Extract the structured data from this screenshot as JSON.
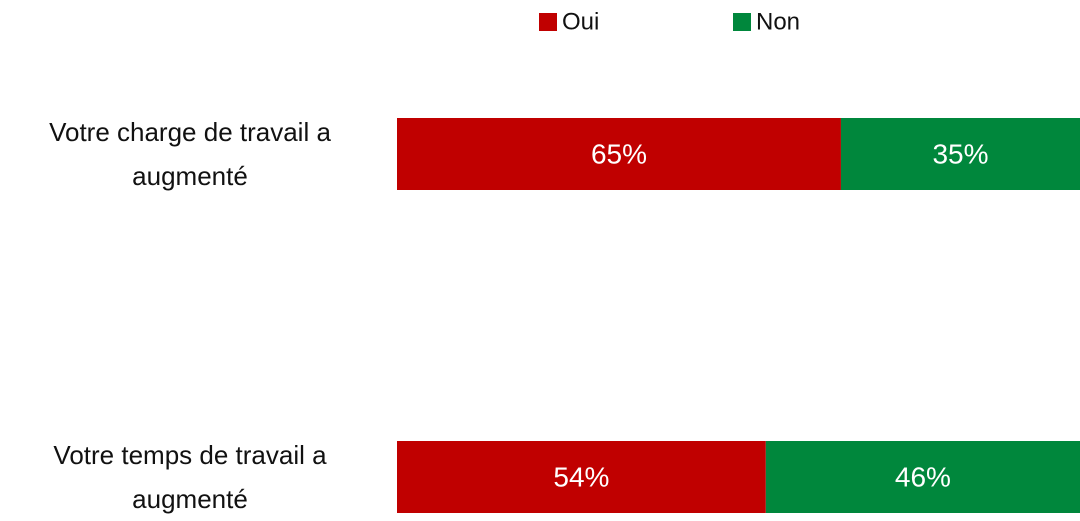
{
  "chart_data": {
    "type": "stacked-bar-horizontal",
    "categories": [
      "Votre charge de travail a augmenté",
      "Votre temps de travail a augmenté"
    ],
    "series": [
      {
        "name": "Oui",
        "color": "#c00000",
        "values": [
          65,
          54
        ],
        "value_labels": [
          "65%",
          "54%"
        ]
      },
      {
        "name": "Non",
        "color": "#00873c",
        "values": [
          35,
          46
        ],
        "value_labels": [
          "35%",
          "46%"
        ]
      }
    ],
    "legend": "top"
  }
}
